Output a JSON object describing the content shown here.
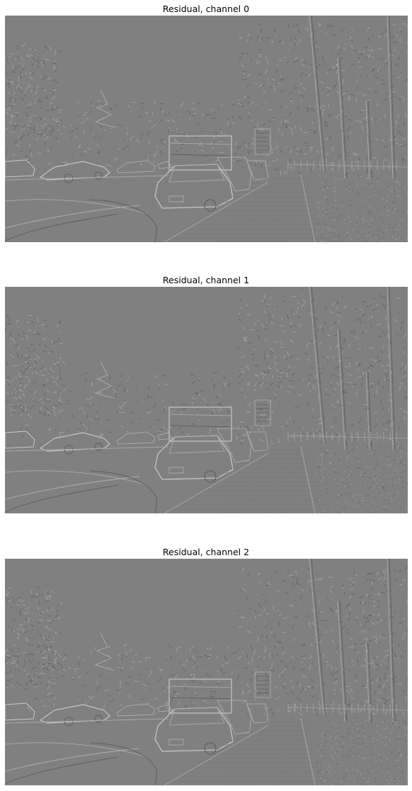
{
  "panels": [
    {
      "title": "Residual, channel 0",
      "image": "residual-street-scene-channel-0"
    },
    {
      "title": "Residual, channel 1",
      "image": "residual-street-scene-channel-1"
    },
    {
      "title": "Residual, channel 2",
      "image": "residual-street-scene-channel-2"
    }
  ],
  "colors": {
    "background": "#ffffff",
    "residual_gray": "#808080"
  }
}
